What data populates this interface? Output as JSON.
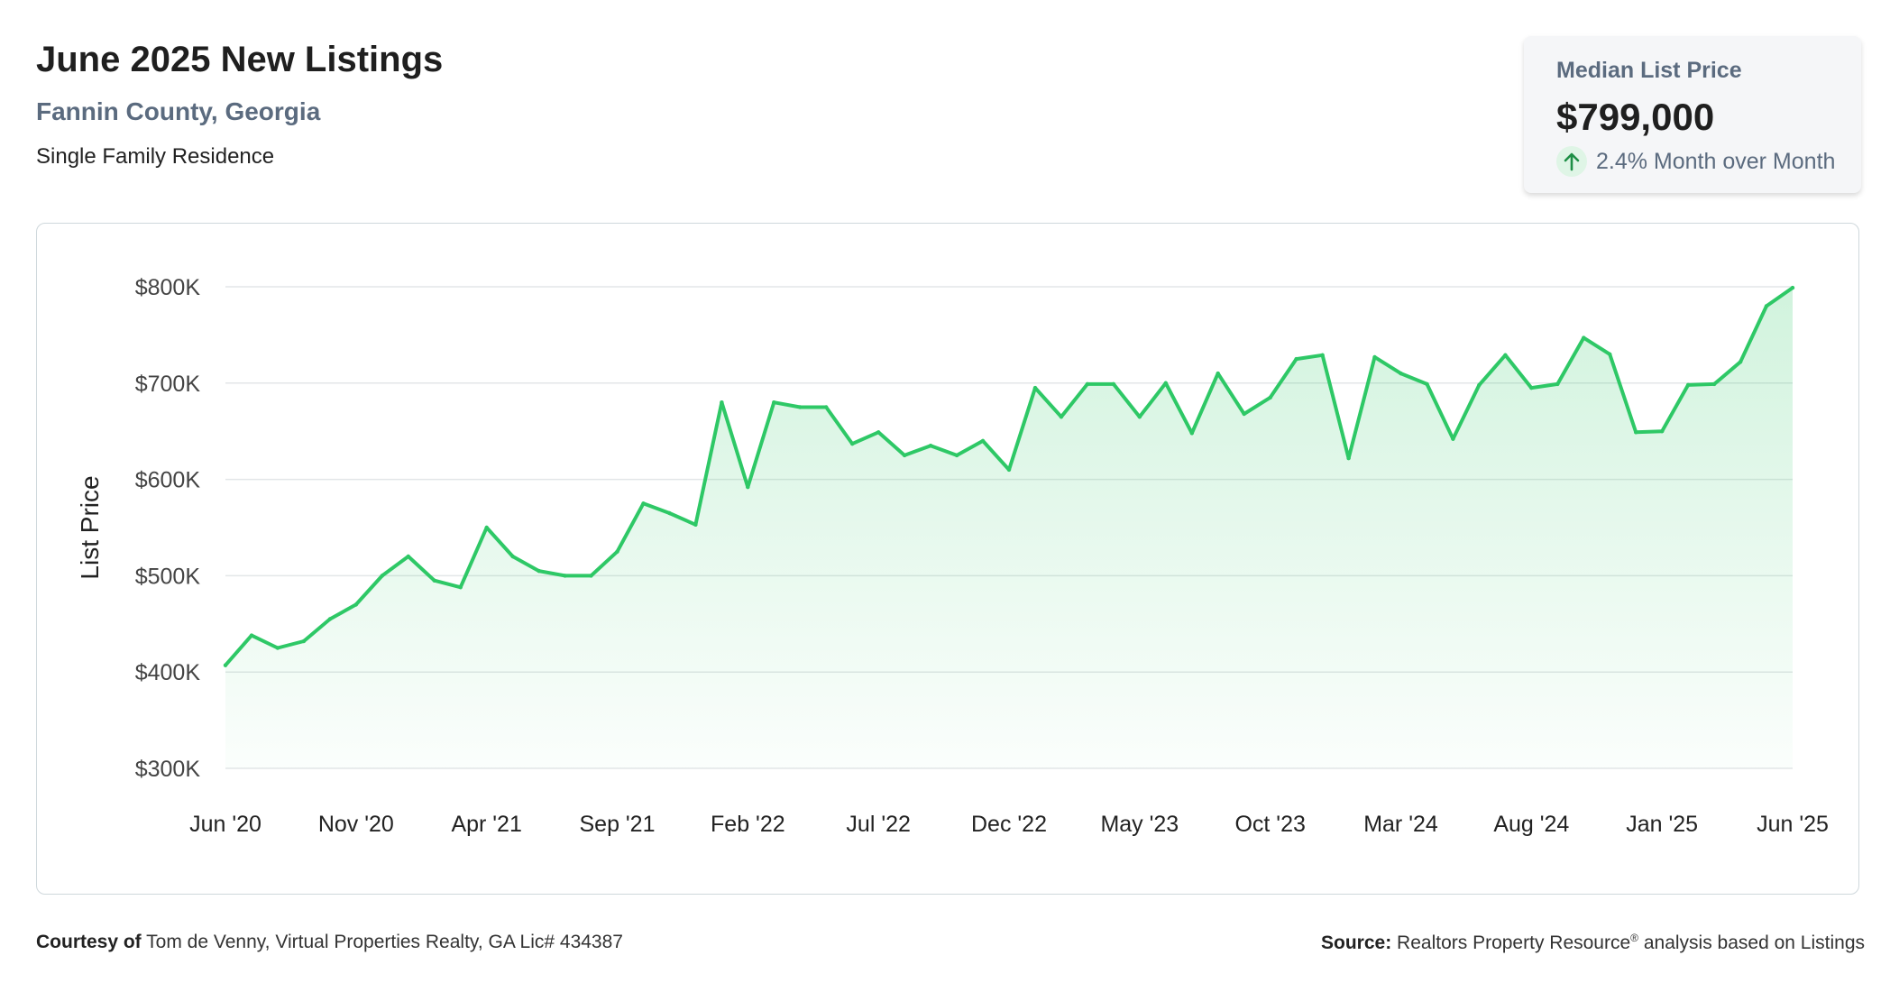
{
  "header": {
    "title": "June 2025 New Listings",
    "location": "Fannin County, Georgia",
    "property_type": "Single Family Residence"
  },
  "stat_card": {
    "label": "Median List Price",
    "value": "$799,000",
    "change_text": "2.4% Month over Month",
    "direction": "up",
    "arrow_icon": "arrow-up-icon"
  },
  "footer": {
    "courtesy_label": "Courtesy of",
    "courtesy_text": "Tom de Venny, Virtual Properties Realty, GA Lic# 434387",
    "source_label": "Source:",
    "source_text_1": "Realtors Property Resource",
    "source_mark": "®",
    "source_text_2": "analysis based on Listings"
  },
  "colors": {
    "line": "#2ec866",
    "fill_top": "#2ec866",
    "grid": "#e3e6e8",
    "axis_text": "#444444",
    "subtitle": "#5b6b7f"
  },
  "chart_data": {
    "type": "area",
    "ylabel": "List Price",
    "xlabel": "",
    "ylim": [
      300000,
      800000
    ],
    "y_ticks": [
      300000,
      400000,
      500000,
      600000,
      700000,
      800000
    ],
    "y_tick_labels": [
      "$300K",
      "$400K",
      "$500K",
      "$600K",
      "$700K",
      "$800K"
    ],
    "x_tick_labels": [
      "Jun '20",
      "Nov '20",
      "Apr '21",
      "Sep '21",
      "Feb '22",
      "Jul '22",
      "Dec '22",
      "May '23",
      "Oct '23",
      "Mar '24",
      "Aug '24",
      "Jan '25",
      "Jun '25"
    ],
    "x_tick_every": 5,
    "grid": true,
    "legend": "none",
    "series": [
      {
        "months": [
          "2020-06",
          "2020-07",
          "2020-08",
          "2020-09",
          "2020-10",
          "2020-11",
          "2020-12",
          "2021-01",
          "2021-02",
          "2021-03",
          "2021-04",
          "2021-05",
          "2021-06",
          "2021-07",
          "2021-08",
          "2021-09",
          "2021-10",
          "2021-11",
          "2021-12",
          "2022-01",
          "2022-02",
          "2022-03",
          "2022-04",
          "2022-05",
          "2022-06",
          "2022-07",
          "2022-08",
          "2022-09",
          "2022-10",
          "2022-11",
          "2022-12",
          "2023-01",
          "2023-02",
          "2023-03",
          "2023-04",
          "2023-05",
          "2023-06",
          "2023-07",
          "2023-08",
          "2023-09",
          "2023-10",
          "2023-11",
          "2023-12",
          "2024-01",
          "2024-02",
          "2024-03",
          "2024-04",
          "2024-05",
          "2024-06",
          "2024-07",
          "2024-08",
          "2024-09",
          "2024-10",
          "2024-11",
          "2024-12",
          "2025-01",
          "2025-02",
          "2025-03",
          "2025-04",
          "2025-05",
          "2025-06"
        ],
        "values": [
          407000,
          438000,
          425000,
          432000,
          455000,
          470000,
          500000,
          520000,
          495000,
          488000,
          550000,
          520000,
          505000,
          500000,
          500000,
          525000,
          575000,
          565000,
          553000,
          680000,
          592000,
          680000,
          675000,
          675000,
          637000,
          649000,
          625000,
          635000,
          625000,
          640000,
          610000,
          695000,
          665000,
          699000,
          699000,
          665000,
          700000,
          648000,
          710000,
          668000,
          685000,
          725000,
          729000,
          622000,
          727000,
          710000,
          699000,
          642000,
          698000,
          729000,
          695000,
          699000,
          747000,
          730000,
          649000,
          650000,
          698000,
          699000,
          722000,
          780000,
          799000
        ]
      }
    ]
  }
}
